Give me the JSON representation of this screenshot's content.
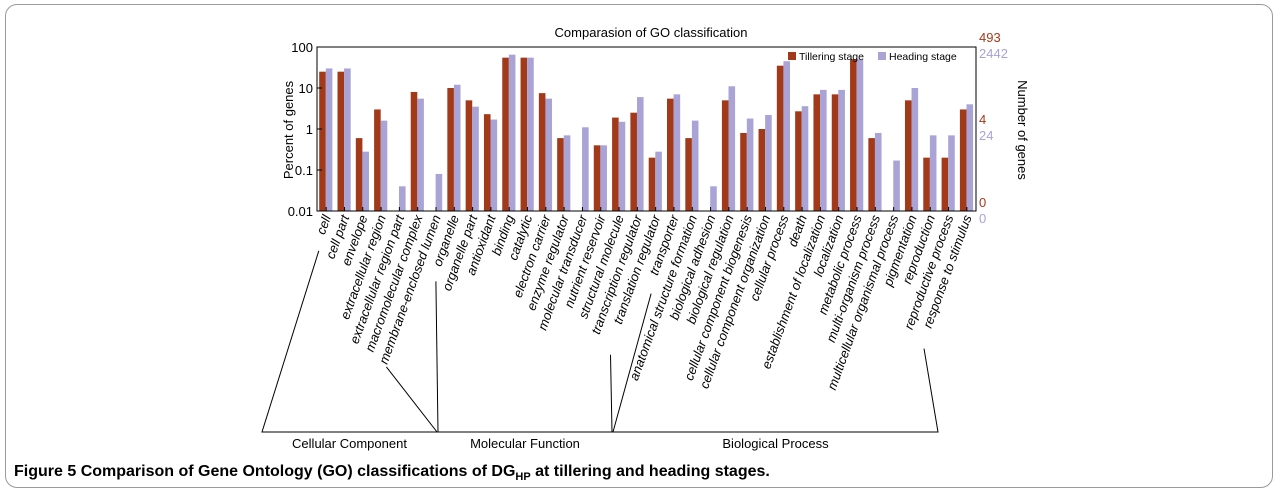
{
  "colors": {
    "tillering": "#a23a1a",
    "heading": "#a9a3d6",
    "axis": "#000000",
    "bg": "#ffffff"
  },
  "caption": {
    "label": "Figure 5",
    "text_before": "Comparison of Gene Ontology (GO) classifications of DG",
    "subscript": "HP",
    "text_after": " at tillering and heading stages."
  },
  "chart_data": {
    "type": "bar",
    "title": "Comparasion of GO classification",
    "ylabel": "Percent of genes",
    "y2label": "Number of genes",
    "yscale": "log",
    "ylim": [
      0.01,
      100
    ],
    "yticks": [
      "0.01",
      "0.1",
      "1",
      "10",
      "100"
    ],
    "y2_tillering_ticks": [
      "493",
      "4",
      "0"
    ],
    "y2_heading_ticks": [
      "2442",
      "24",
      "0"
    ],
    "grid": false,
    "legend_position": "top-right",
    "categories": [
      "cell",
      "cell part",
      "envelope",
      "extracellular region",
      "extracellular region part",
      "macromolecular complex",
      "membrane-enclosed lumen",
      "organelle",
      "organelle part",
      "antioxidant",
      "binding",
      "catalytic",
      "electron carrier",
      "enzyme regulator",
      "molecular transducer",
      "nutrient reservoir",
      "structural molecule",
      "transcription regulator",
      "translation regulator",
      "transporter",
      "anatomical structure formation",
      "biological adhesion",
      "biological regulation",
      "cellular component biogenesis",
      "cellular component organization",
      "cellular process",
      "death",
      "establishment of localization",
      "localization",
      "metabolic process",
      "multi-organism process",
      "multicellular organismal process",
      "pigmentation",
      "reproduction",
      "reproductive process",
      "response to stimulus"
    ],
    "series": [
      {
        "name": "Tillering stage",
        "values": [
          25,
          25,
          0.6,
          3,
          null,
          8,
          null,
          10,
          5,
          2.3,
          55,
          55,
          7.5,
          0.6,
          null,
          0.4,
          1.9,
          2.5,
          0.2,
          5.5,
          0.6,
          null,
          5,
          0.8,
          1,
          35,
          2.7,
          7,
          7,
          50,
          0.6,
          null,
          5,
          0.2,
          0.2,
          3
        ]
      },
      {
        "name": "Heading stage",
        "values": [
          30,
          30,
          0.28,
          1.6,
          0.04,
          5.5,
          0.08,
          12,
          3.5,
          1.7,
          65,
          55,
          5.5,
          0.7,
          1.1,
          0.4,
          1.5,
          6,
          0.28,
          7,
          1.6,
          0.04,
          11,
          1.8,
          2.2,
          45,
          3.6,
          9,
          9,
          50,
          0.8,
          0.17,
          10,
          0.7,
          0.7,
          4
        ]
      }
    ],
    "groups": [
      {
        "name": "Cellular Component",
        "start": 0,
        "end": 6
      },
      {
        "name": "Molecular Function",
        "start": 7,
        "end": 18
      },
      {
        "name": "Biological Process",
        "start": 19,
        "end": 35
      }
    ]
  }
}
